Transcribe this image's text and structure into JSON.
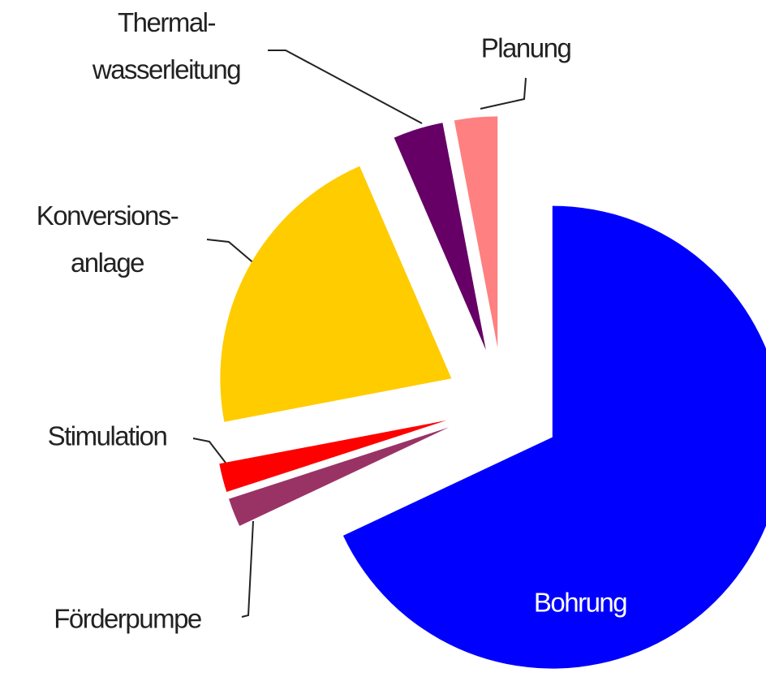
{
  "chart_data": {
    "type": "pie",
    "categories": [
      "Bohrung",
      "Förderpumpe",
      "Stimulation",
      "Konversions-\nanlage",
      "Thermal-\nwasserleitung",
      "Planung"
    ],
    "values": [
      68,
      2,
      2,
      21.5,
      3.5,
      3
    ],
    "colors": [
      "#0000ff",
      "#993366",
      "#ff0000",
      "#ffcc00",
      "#660066",
      "#ff8080"
    ],
    "exploded": true
  }
}
